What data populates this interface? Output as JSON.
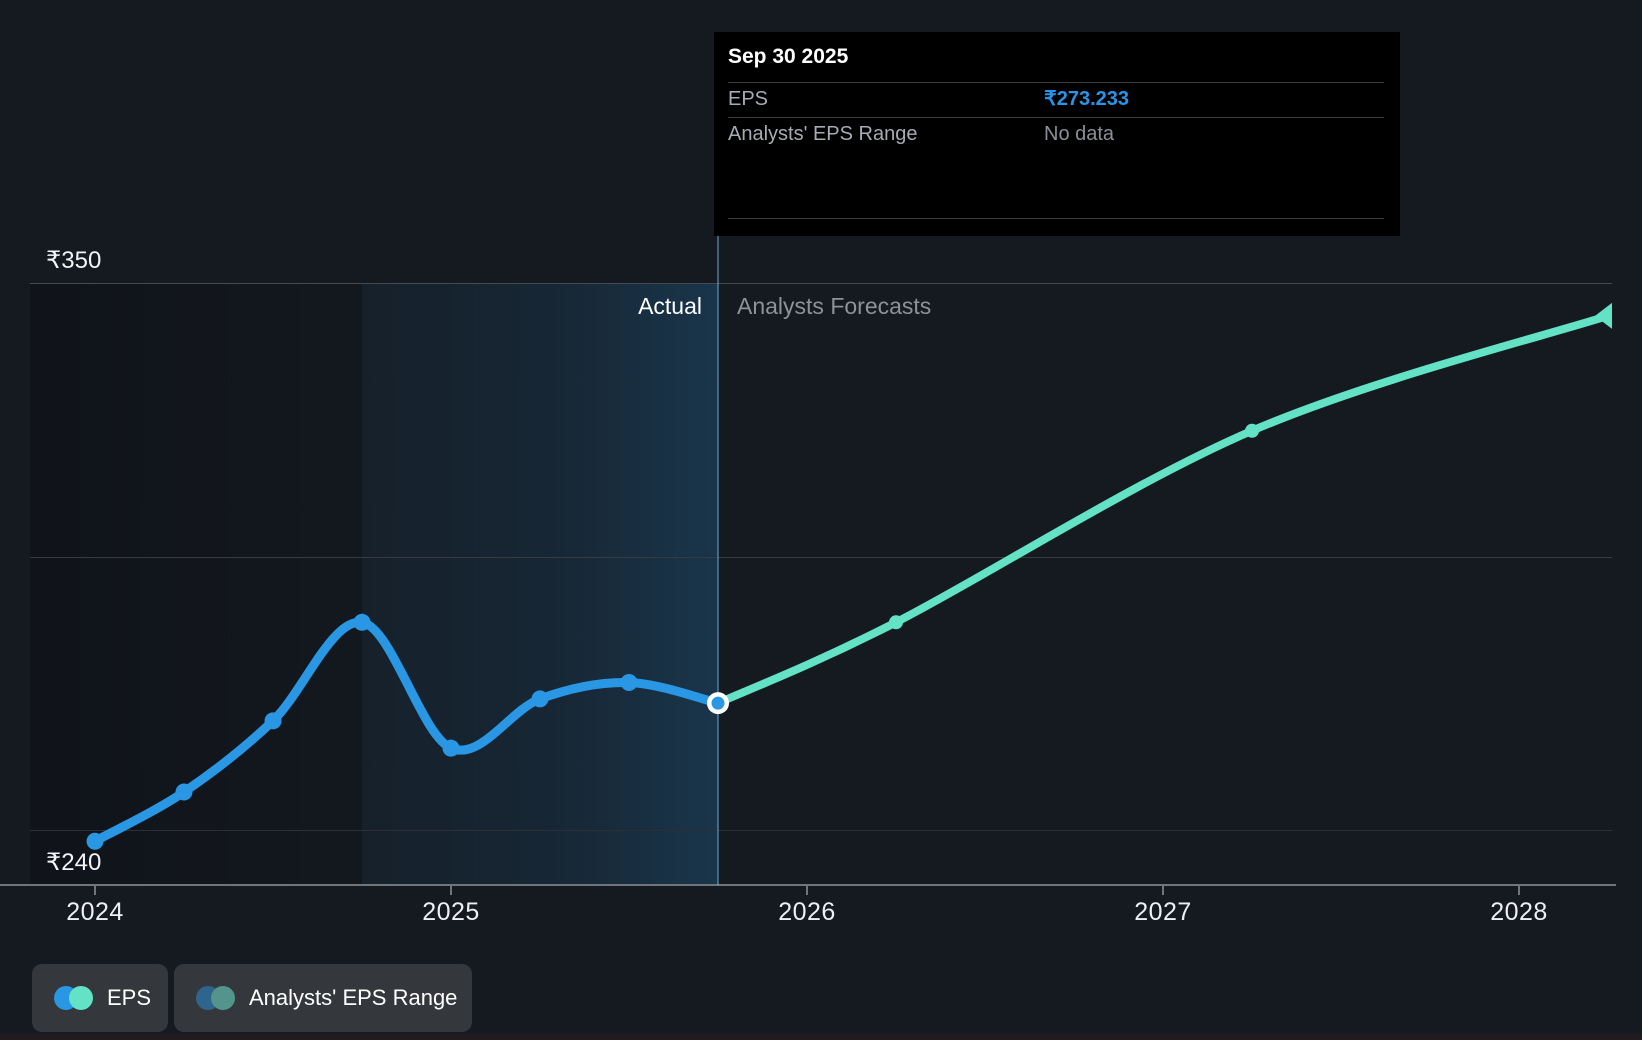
{
  "page": {
    "background": "#151a21"
  },
  "tooltip": {
    "date": "Sep 30 2025",
    "rows": [
      {
        "label": "EPS",
        "value": "₹273.233",
        "value_color": "#2994e8"
      },
      {
        "label": "Analysts' EPS Range",
        "value": "No data",
        "value_color": "#8a9096"
      }
    ]
  },
  "chart": {
    "y_axis_labels": {
      "top": "₹350",
      "bottom": "₹240"
    },
    "region_labels": {
      "actual": "Actual",
      "forecast": "Analysts Forecasts"
    }
  },
  "legend": [
    {
      "label": "EPS",
      "colors": [
        "#2997e3",
        "#64e2c5"
      ]
    },
    {
      "label": "Analysts' EPS Range",
      "colors": [
        "#2d658c",
        "#53948c"
      ]
    }
  ],
  "chart_data": {
    "type": "line",
    "title": "EPS actual vs analysts forecast",
    "currency": "₹",
    "ylim": [
      240,
      350
    ],
    "y_gridline_values": [
      350,
      300,
      250
    ],
    "x_ticks": [
      "2024",
      "2025",
      "2026",
      "2027",
      "2028"
    ],
    "xlim": [
      2023.82,
      2028.35
    ],
    "divider": {
      "date": "Sep 30 2025",
      "x": 2025.75
    },
    "legend_position": "bottom-left",
    "series": [
      {
        "name": "EPS (actual)",
        "color": "#2997e3",
        "line_width": 9,
        "points": [
          {
            "period": "Dec 2023",
            "x": 2024.0,
            "value": 248,
            "marker": "dot"
          },
          {
            "period": "Mar 2024",
            "x": 2024.25,
            "value": 257,
            "marker": "dot"
          },
          {
            "period": "Jun 2024",
            "x": 2024.5,
            "value": 270,
            "marker": "dot"
          },
          {
            "period": "Sep 2024",
            "x": 2024.75,
            "value": 288,
            "marker": "dot"
          },
          {
            "period": "Dec 2024",
            "x": 2025.0,
            "value": 265,
            "marker": "dot"
          },
          {
            "period": "Mar 2025",
            "x": 2025.25,
            "value": 274,
            "marker": "dot"
          },
          {
            "period": "Jun 2025",
            "x": 2025.5,
            "value": 277,
            "marker": "dot"
          },
          {
            "period": "Sep 2025",
            "x": 2025.75,
            "value": 273.233,
            "marker": "current"
          }
        ]
      },
      {
        "name": "EPS (analysts forecast)",
        "color": "#64e2c5",
        "line_width": 8,
        "points": [
          {
            "period": "Sep 2025",
            "x": 2025.75,
            "value": 273.233,
            "marker": "none"
          },
          {
            "period": "Mar 2026",
            "x": 2026.25,
            "value": 288,
            "marker": "dot"
          },
          {
            "period": "Mar 2027",
            "x": 2027.25,
            "value": 323,
            "marker": "dot"
          },
          {
            "period": "Mar 2028",
            "x": 2028.25,
            "value": 344,
            "marker": "arrow"
          }
        ]
      }
    ]
  }
}
